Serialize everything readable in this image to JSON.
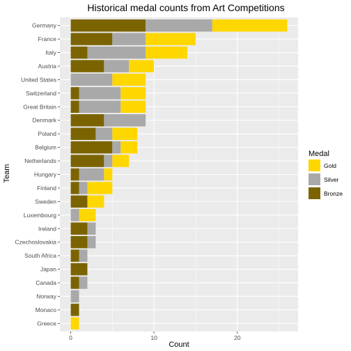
{
  "chart_data": {
    "type": "bar",
    "orientation": "horizontal",
    "stacked": true,
    "title": "Historical medal counts from Art Competitions",
    "xlabel": "Count",
    "ylabel": "Team",
    "xlim": [
      -1.3,
      27.3
    ],
    "xticks": [
      0,
      10,
      20
    ],
    "grid": true,
    "legend_position": "right",
    "legend_title": "Medal",
    "categories": [
      "Germany",
      "France",
      "Italy",
      "Austria",
      "United States",
      "Switzerland",
      "Great Britain",
      "Denmark",
      "Poland",
      "Belgium",
      "Netherlands",
      "Hungary",
      "Finland",
      "Sweden",
      "Luxembourg",
      "Ireland",
      "Czechoslovakia",
      "South Africa",
      "Japan",
      "Canada",
      "Norway",
      "Monaco",
      "Greece"
    ],
    "stack_order": [
      "Bronze",
      "Silver",
      "Gold"
    ],
    "series": [
      {
        "name": "Gold",
        "color": "#FFD700",
        "values": [
          9,
          6,
          5,
          3,
          4,
          3,
          3,
          0,
          3,
          2,
          2,
          1,
          3,
          2,
          2,
          0,
          0,
          0,
          0,
          0,
          0,
          0,
          1
        ]
      },
      {
        "name": "Silver",
        "color": "#A9A9A9",
        "values": [
          8,
          4,
          7,
          3,
          5,
          5,
          5,
          5,
          2,
          1,
          1,
          3,
          1,
          0,
          1,
          1,
          1,
          1,
          0,
          1,
          1,
          0,
          0
        ]
      },
      {
        "name": "Bronze",
        "color": "#7B6400",
        "values": [
          9,
          5,
          2,
          4,
          0,
          1,
          1,
          4,
          3,
          5,
          4,
          1,
          1,
          2,
          0,
          2,
          2,
          1,
          2,
          1,
          0,
          1,
          0
        ]
      }
    ]
  }
}
